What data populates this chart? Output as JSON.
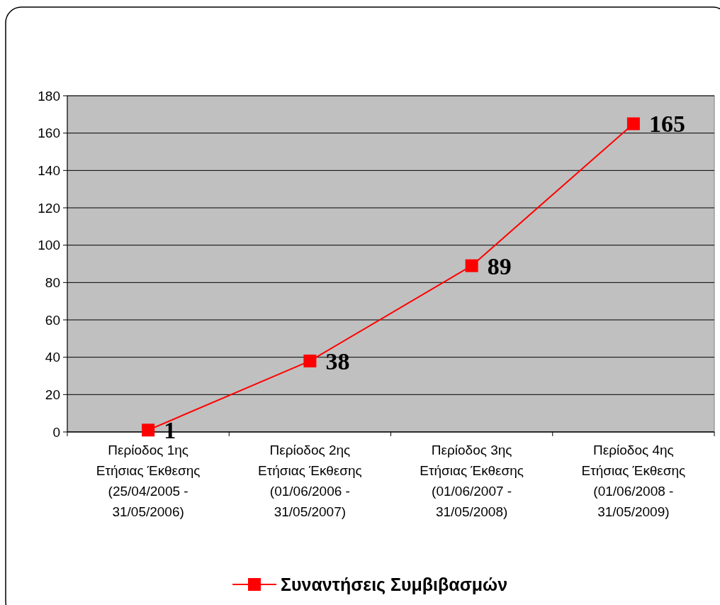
{
  "chart_data": {
    "type": "line",
    "categories": [
      "Περίοδος 1ης\nΕτήσιας Έκθεσης\n(25/04/2005 -\n31/05/2006)",
      "Περίοδος 2ης\nΕτήσιας Έκθεσης\n(01/06/2006 -\n31/05/2007)",
      "Περίοδος 3ης\nΕτήσιας Έκθεσης\n(01/06/2007 -\n31/05/2008)",
      "Περίοδος 4ης\nΕτήσιας Έκθεσης\n(01/06/2008 -\n31/05/2009)"
    ],
    "series": [
      {
        "name": "Συναντήσεις Συμβιβασμών",
        "color": "#ff0000",
        "values": [
          1,
          38,
          89,
          165
        ]
      }
    ],
    "ylim": [
      0,
      180
    ],
    "yticks": [
      0,
      20,
      40,
      60,
      80,
      100,
      120,
      140,
      160,
      180
    ],
    "grid": "y",
    "legend": "bottom",
    "marker": "square",
    "line_style": "solid",
    "data_labels": true
  }
}
